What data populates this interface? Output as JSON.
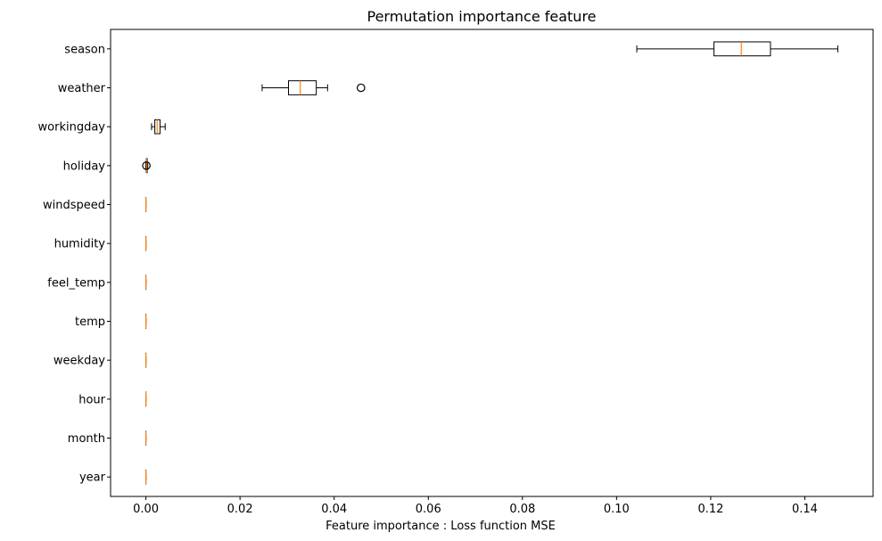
{
  "chart_data": {
    "type": "boxplot",
    "orientation": "horizontal",
    "title": "Permutation importance feature",
    "xlabel": "Feature importance : Loss function MSE",
    "ylabel": "",
    "xlim": [
      -0.0075,
      0.1545
    ],
    "xticks": [
      0.0,
      0.02,
      0.04,
      0.06,
      0.08,
      0.1,
      0.12,
      0.14
    ],
    "xtick_labels": [
      "0.00",
      "0.02",
      "0.04",
      "0.06",
      "0.08",
      "0.10",
      "0.12",
      "0.14"
    ],
    "grid": false,
    "colors": {
      "box": "#000000",
      "median": "#ff7f0e",
      "outlier": "#000000"
    },
    "categories": [
      "season",
      "weather",
      "workingday",
      "holiday",
      "windspeed",
      "humidity",
      "feel_temp",
      "temp",
      "weekday",
      "hour",
      "month",
      "year"
    ],
    "boxes": [
      {
        "label": "season",
        "whislo": 0.1043,
        "q1": 0.1207,
        "med": 0.1265,
        "q3": 0.1327,
        "whishi": 0.147,
        "fliers": []
      },
      {
        "label": "weather",
        "whislo": 0.0247,
        "q1": 0.0303,
        "med": 0.0328,
        "q3": 0.0362,
        "whishi": 0.0386,
        "fliers": [
          0.0457
        ]
      },
      {
        "label": "workingday",
        "whislo": 0.0012,
        "q1": 0.0019,
        "med": 0.0024,
        "q3": 0.003,
        "whishi": 0.0041,
        "fliers": []
      },
      {
        "label": "holiday",
        "whislo": 0.0,
        "q1": 0.0001,
        "med": 0.0002,
        "q3": 0.0003,
        "whishi": 0.0004,
        "fliers": [
          0.0001
        ]
      },
      {
        "label": "windspeed",
        "whislo": 0.0,
        "q1": 0.0,
        "med": 0.0,
        "q3": 0.0,
        "whishi": 0.0,
        "fliers": []
      },
      {
        "label": "humidity",
        "whislo": 0.0,
        "q1": 0.0,
        "med": 0.0,
        "q3": 0.0,
        "whishi": 0.0,
        "fliers": []
      },
      {
        "label": "feel_temp",
        "whislo": 0.0,
        "q1": 0.0,
        "med": 0.0,
        "q3": 0.0,
        "whishi": 0.0,
        "fliers": []
      },
      {
        "label": "temp",
        "whislo": 0.0,
        "q1": 0.0,
        "med": 0.0,
        "q3": 0.0,
        "whishi": 0.0,
        "fliers": []
      },
      {
        "label": "weekday",
        "whislo": 0.0,
        "q1": 0.0,
        "med": 0.0,
        "q3": 0.0,
        "whishi": 0.0,
        "fliers": []
      },
      {
        "label": "hour",
        "whislo": 0.0,
        "q1": 0.0,
        "med": 0.0,
        "q3": 0.0,
        "whishi": 0.0,
        "fliers": []
      },
      {
        "label": "month",
        "whislo": 0.0,
        "q1": 0.0,
        "med": 0.0,
        "q3": 0.0,
        "whishi": 0.0,
        "fliers": []
      },
      {
        "label": "year",
        "whislo": 0.0,
        "q1": 0.0,
        "med": 0.0,
        "q3": 0.0,
        "whishi": 0.0,
        "fliers": []
      }
    ]
  }
}
